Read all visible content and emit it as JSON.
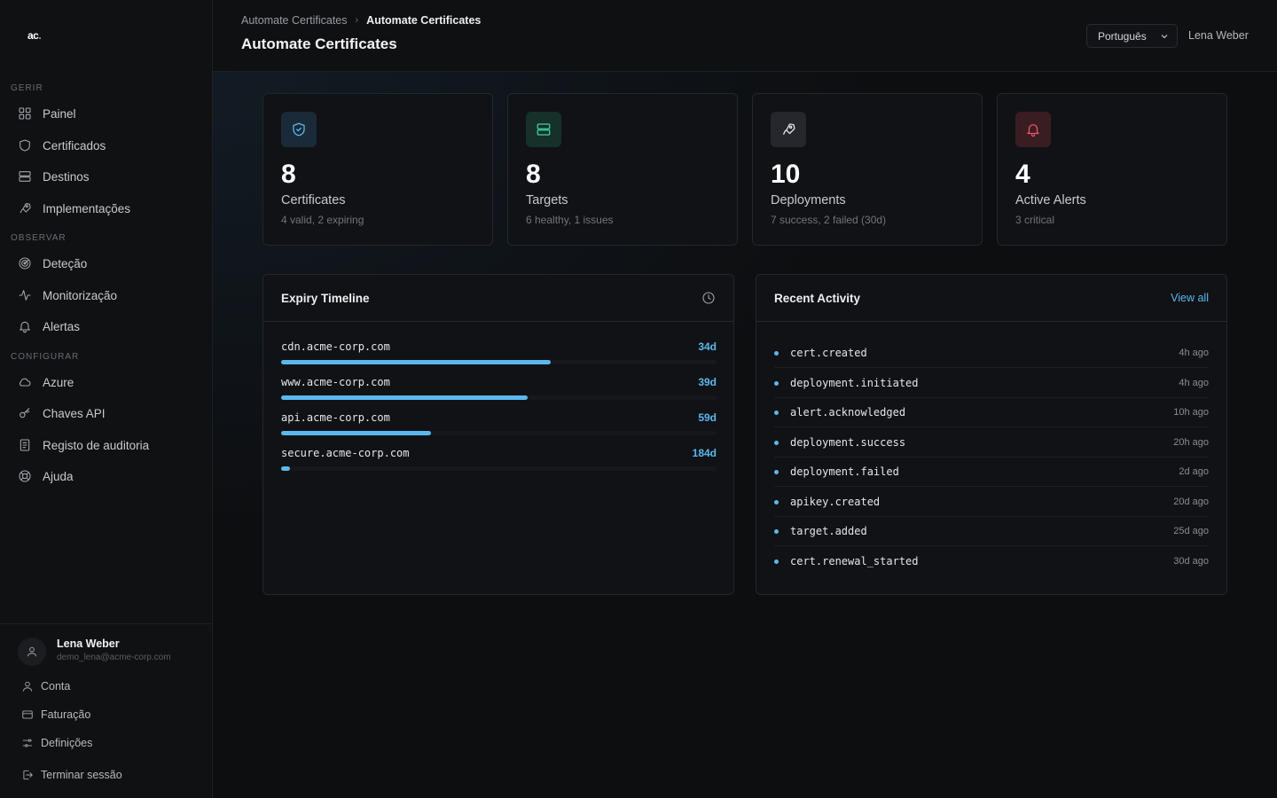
{
  "brand": {
    "logo_text": "ac",
    "logo_dot": "."
  },
  "sidebar": {
    "sections": [
      {
        "label": "GERIR",
        "items": [
          {
            "label": "Painel",
            "icon": "dashboard-icon"
          },
          {
            "label": "Certificados",
            "icon": "shield-icon"
          },
          {
            "label": "Destinos",
            "icon": "server-icon"
          },
          {
            "label": "Implementações",
            "icon": "rocket-icon"
          }
        ]
      },
      {
        "label": "OBSERVAR",
        "items": [
          {
            "label": "Deteção",
            "icon": "radar-icon"
          },
          {
            "label": "Monitorização",
            "icon": "activity-icon"
          },
          {
            "label": "Alertas",
            "icon": "bell-icon"
          }
        ]
      },
      {
        "label": "CONFIGURAR",
        "items": [
          {
            "label": "Azure",
            "icon": "cloud-icon"
          },
          {
            "label": "Chaves API",
            "icon": "key-icon"
          },
          {
            "label": "Registo de auditoria",
            "icon": "audit-log-icon"
          },
          {
            "label": "Ajuda",
            "icon": "help-icon"
          }
        ]
      }
    ],
    "user": {
      "name": "Lena Weber",
      "email": "demo_lena@acme-corp.com"
    },
    "bottom_links": [
      {
        "label": "Conta",
        "icon": "user-icon"
      },
      {
        "label": "Faturação",
        "icon": "credit-card-icon"
      },
      {
        "label": "Definições",
        "icon": "sliders-icon"
      },
      {
        "label": "Terminar sessão",
        "icon": "logout-icon"
      }
    ]
  },
  "header": {
    "breadcrumb": {
      "parent": "Automate Certificates",
      "current": "Automate Certificates"
    },
    "title": "Automate Certificates",
    "language": "Português",
    "user_name": "Lena Weber"
  },
  "stats": [
    {
      "value": "8",
      "label": "Certificates",
      "sub": "4 valid, 2 expiring",
      "icon": "shield-check-icon",
      "color": "#5ab8f0",
      "bg": "#1b2a38"
    },
    {
      "value": "8",
      "label": "Targets",
      "sub": "6 healthy, 1 issues",
      "icon": "server-icon",
      "color": "#3fd39a",
      "bg": "#16302a"
    },
    {
      "value": "10",
      "label": "Deployments",
      "sub": "7 success, 2 failed (30d)",
      "icon": "rocket-icon",
      "color": "#e6e6e8",
      "bg": "#26272c"
    },
    {
      "value": "4",
      "label": "Active Alerts",
      "sub": "3 critical",
      "icon": "bell-icon",
      "color": "#e8566a",
      "bg": "#3a1d23"
    }
  ],
  "expiry_timeline": {
    "title": "Expiry Timeline",
    "items": [
      {
        "domain": "cdn.acme-corp.com",
        "days": "34d",
        "fill": 0.62
      },
      {
        "domain": "www.acme-corp.com",
        "days": "39d",
        "fill": 0.566
      },
      {
        "domain": "api.acme-corp.com",
        "days": "59d",
        "fill": 0.344
      },
      {
        "domain": "secure.acme-corp.com",
        "days": "184d",
        "fill": 0.02
      }
    ]
  },
  "recent_activity": {
    "title": "Recent Activity",
    "view_all": "View all",
    "items": [
      {
        "event": "cert.created",
        "time": "4h ago"
      },
      {
        "event": "deployment.initiated",
        "time": "4h ago"
      },
      {
        "event": "alert.acknowledged",
        "time": "10h ago"
      },
      {
        "event": "deployment.success",
        "time": "20h ago"
      },
      {
        "event": "deployment.failed",
        "time": "2d ago"
      },
      {
        "event": "apikey.created",
        "time": "20d ago"
      },
      {
        "event": "target.added",
        "time": "25d ago"
      },
      {
        "event": "cert.renewal_started",
        "time": "30d ago"
      }
    ]
  }
}
